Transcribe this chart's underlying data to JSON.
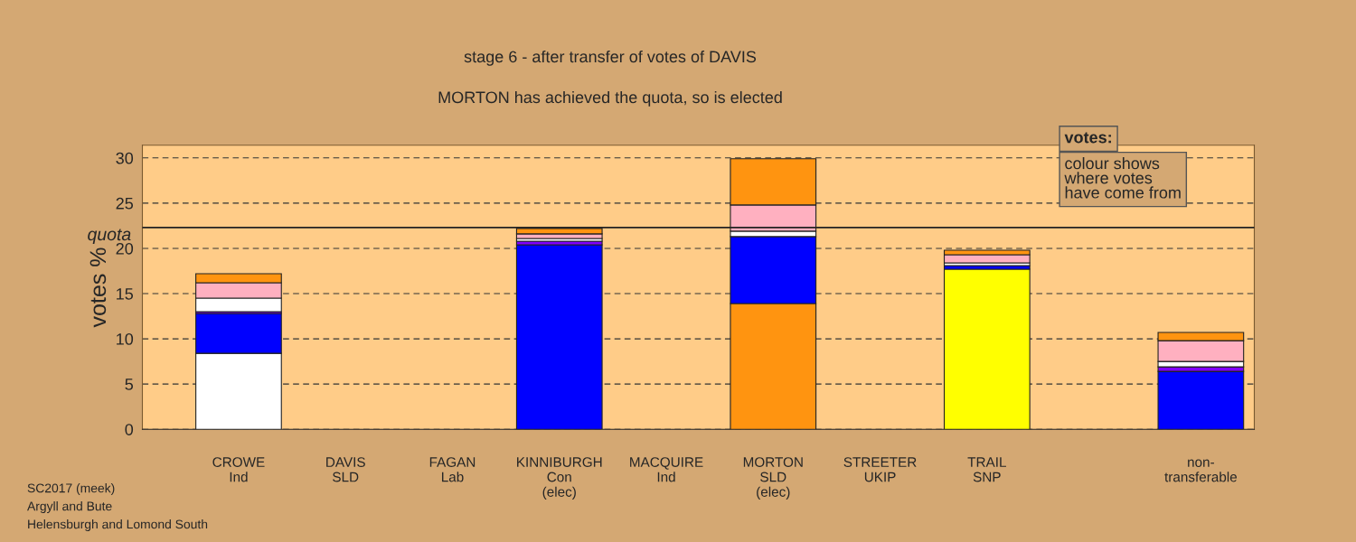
{
  "chart_data": {
    "type": "bar",
    "stacked": true,
    "title": "stage 6 - after transfer of votes of DAVIS",
    "subtitle": "MORTON has achieved the quota, so is elected",
    "ylabel": "votes %",
    "categories": [
      "CROWE\nInd",
      "DAVIS\nSLD",
      "FAGAN\nLab",
      "KINNIBURGH\nCon\n(elec)",
      "MACQUIRE\nInd",
      "MORTON\nSLD\n(elec)",
      "STREETER\nUKIP",
      "TRAIL\nSNP",
      null,
      "non-\ntransferable"
    ],
    "series": [
      {
        "colors": [
          "#ffffff",
          "#ffffff",
          "#ffffff",
          "#0000ff",
          "#ffffff",
          "#ff9410",
          "#ffffff",
          "#ffff00",
          "#ffffff",
          "#ffffff"
        ],
        "values": [
          8.4,
          0,
          0,
          20.4,
          0,
          13.9,
          0,
          17.7,
          null,
          0
        ]
      },
      {
        "color": "#0000ff",
        "values": [
          4.4,
          0,
          0,
          0,
          0,
          7.4,
          0,
          0.4,
          null,
          6.4
        ]
      },
      {
        "color": "#8000ff",
        "values": [
          0.2,
          0,
          0,
          0.4,
          0,
          0,
          0,
          0,
          null,
          0.5
        ]
      },
      {
        "color": "#ffffff",
        "values": [
          1.5,
          0,
          0,
          0.3,
          0,
          0.6,
          0,
          0.3,
          null,
          0.6
        ]
      },
      {
        "color": "#ffb0c0",
        "values": [
          1.7,
          0,
          0,
          0.5,
          0,
          2.9,
          0,
          0.9,
          null,
          2.3
        ]
      },
      {
        "color": "#ff9410",
        "values": [
          1.0,
          0,
          0,
          0.6,
          0,
          5.1,
          0,
          0.5,
          null,
          0.9
        ]
      }
    ],
    "ylim": [
      0,
      31.4
    ],
    "yticks": [
      0,
      5,
      10,
      15,
      20,
      25,
      30
    ],
    "grid": "y",
    "ref_lines": [
      {
        "axis": "y",
        "value": 22.3,
        "label": "quota"
      }
    ],
    "annotations": [
      "votes:",
      "colour shows\nwhere votes\nhave come from",
      "SC2017 (meek)\nArgyll and Bute\nHelensburgh and Lomond South"
    ]
  }
}
